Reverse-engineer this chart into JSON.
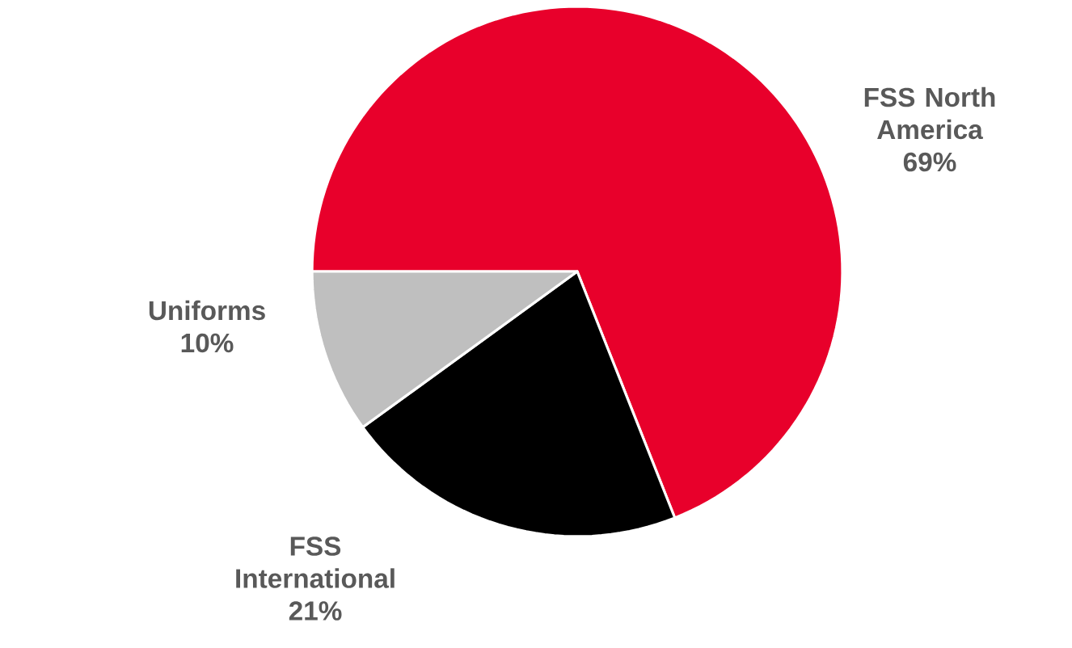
{
  "chart_data": {
    "type": "pie",
    "categories": [
      "FSS North America",
      "FSS International",
      "Uniforms"
    ],
    "values": [
      69,
      21,
      10
    ],
    "colors": [
      "#e8002b",
      "#000000",
      "#bfbfbf"
    ],
    "value_labels": [
      "69%",
      "21%",
      "10%"
    ]
  }
}
